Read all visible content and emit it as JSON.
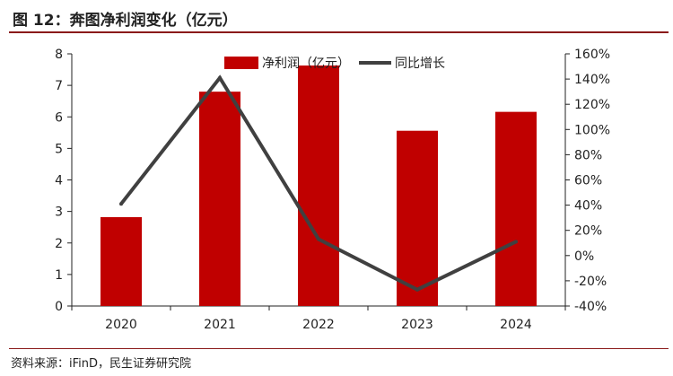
{
  "header": {
    "title": "图 12：奔图净利润变化（亿元）"
  },
  "footer": {
    "source": "资料来源：iFinD，民生证券研究院"
  },
  "colors": {
    "bar": "#c00000",
    "line": "#404040",
    "accent": "#8a1a1a"
  },
  "chart_data": {
    "type": "bar",
    "categories": [
      "2020",
      "2021",
      "2022",
      "2023",
      "2024"
    ],
    "series": [
      {
        "name": "净利润（亿元）",
        "type": "bar",
        "axis": "left",
        "values": [
          2.82,
          6.8,
          7.63,
          5.56,
          6.16
        ]
      },
      {
        "name": "同比增长",
        "type": "line",
        "axis": "right",
        "values": [
          41,
          141,
          13,
          -27,
          11
        ]
      }
    ],
    "left_axis": {
      "ylim": [
        0,
        8
      ],
      "ticks": [
        "0",
        "1",
        "2",
        "3",
        "4",
        "5",
        "6",
        "7",
        "8"
      ]
    },
    "right_axis": {
      "ylim": [
        -40,
        160
      ],
      "ticks": [
        "-40%",
        "-20%",
        "0%",
        "20%",
        "40%",
        "60%",
        "80%",
        "100%",
        "120%",
        "140%",
        "160%"
      ]
    },
    "grid": false,
    "legend": "top-center"
  }
}
